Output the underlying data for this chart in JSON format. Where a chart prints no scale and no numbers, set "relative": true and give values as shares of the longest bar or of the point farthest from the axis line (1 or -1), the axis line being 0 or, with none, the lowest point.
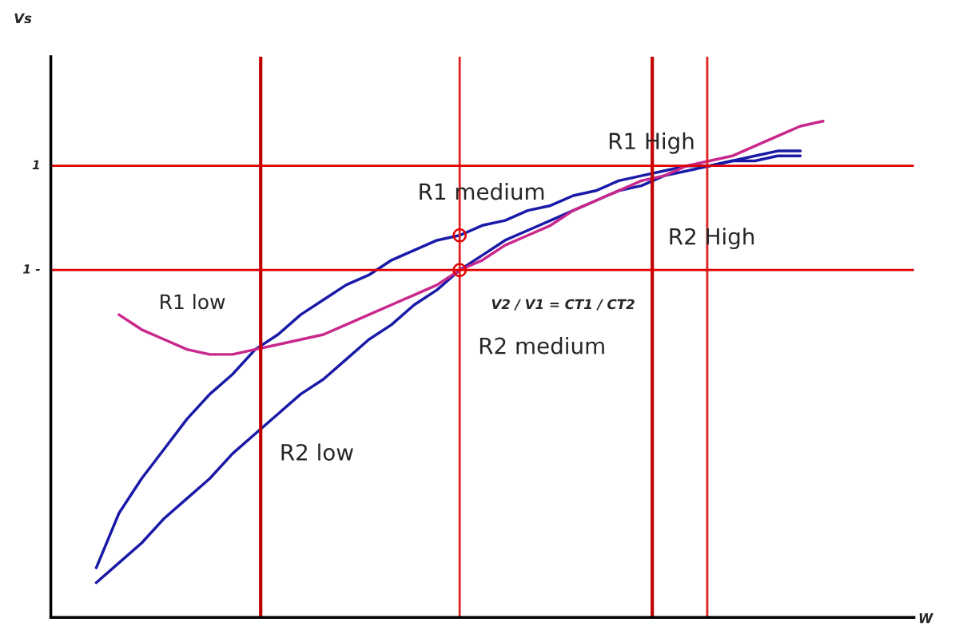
{
  "chart_data": {
    "type": "line",
    "relative": true,
    "categories": [
      null,
      null,
      null,
      null,
      null,
      null,
      null,
      null,
      null,
      null,
      null,
      null,
      null,
      null,
      null,
      null,
      null,
      null,
      null,
      null,
      null,
      null,
      null,
      null,
      null,
      null,
      null,
      null,
      null,
      null,
      null,
      null,
      null
    ],
    "series": [
      {
        "color": "#1a1aa8",
        "values": [
          0.1,
          0.21,
          0.28,
          0.34,
          0.4,
          0.45,
          0.49,
          0.54,
          0.57,
          0.61,
          0.64,
          0.67,
          0.69,
          0.72,
          0.74,
          0.76,
          0.77,
          0.79,
          0.8,
          0.82,
          0.83,
          0.85,
          0.86,
          0.88,
          0.89,
          0.9,
          0.91,
          0.91,
          0.92,
          0.93,
          0.94,
          0.94,
          null
        ]
      },
      {
        "color": "#1a1aa8",
        "values": [
          0.07,
          0.11,
          0.15,
          0.2,
          0.24,
          0.28,
          0.33,
          0.37,
          0.41,
          0.45,
          0.48,
          0.52,
          0.56,
          0.59,
          0.63,
          0.66,
          0.7,
          0.73,
          0.76,
          0.78,
          0.8,
          0.82,
          0.84,
          0.86,
          0.87,
          0.89,
          0.9,
          0.91,
          0.92,
          0.92,
          0.93,
          0.93,
          null
        ]
      },
      {
        "color": "#c8288c",
        "values": [
          null,
          0.61,
          0.58,
          0.56,
          0.54,
          0.53,
          0.53,
          0.54,
          0.55,
          0.56,
          0.57,
          0.59,
          0.61,
          0.63,
          0.65,
          0.67,
          0.7,
          0.72,
          0.75,
          0.77,
          0.79,
          0.82,
          0.84,
          0.86,
          0.88,
          0.89,
          0.91,
          0.92,
          0.93,
          0.95,
          0.97,
          0.99,
          1.0
        ]
      }
    ],
    "ref_lines": [
      {
        "axis": "y",
        "value": 0.91,
        "label": "1",
        "color": "#e00000"
      },
      {
        "axis": "y",
        "value": 0.7,
        "label": "1 -",
        "color": "#e00000"
      }
    ],
    "annotations": [
      "R1 High",
      "R2 High",
      "R1 medium",
      "R2 medium",
      "R1 low",
      "R2 low",
      "V2 / V1 = CT1 / CT2",
      "Vs",
      "W"
    ],
    "legend": false
  }
}
